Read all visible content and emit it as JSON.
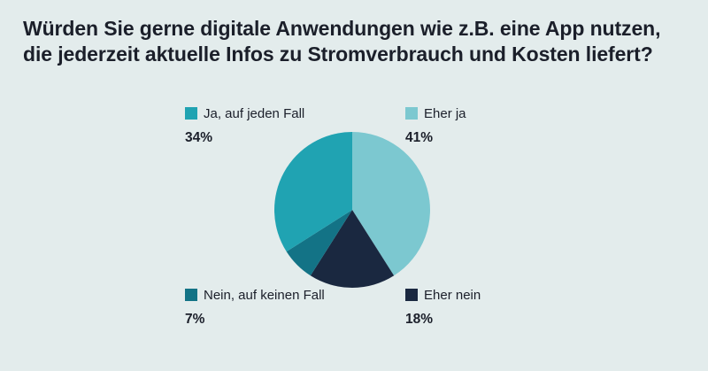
{
  "chart_data": {
    "type": "pie",
    "title_lines": [
      "Würden Sie gerne digitale Anwendungen wie z.B. eine App nutzen,",
      "die jederzeit aktuelle Infos zu Stromverbrauch und Kosten liefert?"
    ],
    "slices": [
      {
        "name": "Ja, auf jeden Fall",
        "value": 34,
        "display": "34%",
        "color": "#20a3b2"
      },
      {
        "name": "Eher ja",
        "value": 41,
        "display": "41%",
        "color": "#7cc8d0"
      },
      {
        "name": "Nein, auf keinen Fall",
        "value": 7,
        "display": "7%",
        "color": "#137386"
      },
      {
        "name": "Eher nein",
        "value": 18,
        "display": "18%",
        "color": "#1a2840"
      }
    ],
    "slice_order_clockwise_from_top": [
      "Eher ja",
      "Eher nein",
      "Nein, auf keinen Fall",
      "Ja, auf jeden Fall"
    ],
    "unit": "%"
  }
}
